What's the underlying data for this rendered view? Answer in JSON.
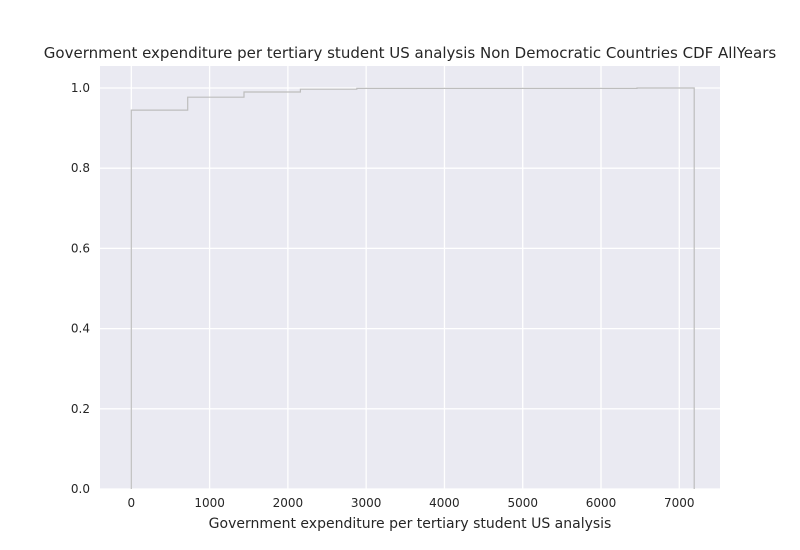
{
  "chart_data": {
    "type": "line",
    "subtype": "step-cdf",
    "title": "Government expenditure per tertiary student US analysis Non Democratic Countries CDF AllYears",
    "xlabel": "Government expenditure per tertiary student US analysis",
    "ylabel": "",
    "xlim": [
      -400,
      7520
    ],
    "ylim": [
      0.0,
      1.0
    ],
    "xticks": [
      0,
      1000,
      2000,
      3000,
      4000,
      5000,
      6000,
      7000
    ],
    "yticks": [
      0.0,
      0.2,
      0.4,
      0.6,
      0.8,
      1.0
    ],
    "xtick_labels": [
      "0",
      "1000",
      "2000",
      "3000",
      "4000",
      "5000",
      "6000",
      "7000"
    ],
    "ytick_labels": [
      "0.0",
      "0.2",
      "0.4",
      "0.6",
      "0.8",
      "1.0"
    ],
    "grid": true,
    "style": {
      "background": "#EAEAF2",
      "grid_color": "#ffffff",
      "line_color": "#BDBDBD"
    },
    "series": [
      {
        "x": [
          0,
          0,
          720,
          720,
          1440,
          1440,
          2160,
          2160,
          2880,
          2880,
          6460,
          6460,
          7190,
          7190
        ],
        "y": [
          0.0,
          0.945,
          0.945,
          0.977,
          0.977,
          0.99,
          0.99,
          0.997,
          0.997,
          0.999,
          0.999,
          1.0,
          1.0,
          0.0
        ]
      }
    ]
  }
}
